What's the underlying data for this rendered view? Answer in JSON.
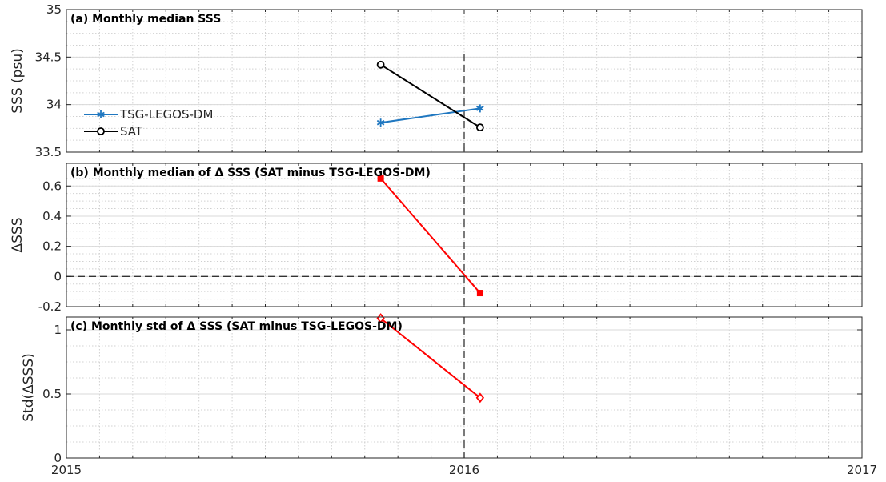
{
  "chart_data": [
    {
      "id": "a",
      "type": "line",
      "title": "(a) Monthly median SSS",
      "ylabel": "SSS (psu)",
      "xlabel": "",
      "xlim": [
        2015,
        2017
      ],
      "ylim": [
        33.5,
        35
      ],
      "yticks": [
        33.5,
        34,
        34.5,
        35
      ],
      "yticklabels": [
        "33.5",
        "34",
        "34.5",
        "35"
      ],
      "grid": true,
      "legend": "left",
      "series": [
        {
          "name": "TSG-LEGOS-DM",
          "color": "#1f77c0",
          "marker": "asterisk",
          "x": [
            2015.79,
            2016.04
          ],
          "y": [
            33.81,
            33.96
          ]
        },
        {
          "name": "SAT",
          "color": "#000000",
          "marker": "circle",
          "x": [
            2015.79,
            2016.04
          ],
          "y": [
            34.42,
            33.76
          ]
        }
      ]
    },
    {
      "id": "b",
      "type": "line",
      "title": "(b) Monthly median of Δ SSS (SAT minus TSG-LEGOS-DM)",
      "ylabel": "ΔSSS",
      "xlabel": "",
      "xlim": [
        2015,
        2017
      ],
      "ylim": [
        -0.2,
        0.75
      ],
      "yticks": [
        -0.2,
        0,
        0.2,
        0.4,
        0.6
      ],
      "yticklabels": [
        "-0.2",
        "0",
        "0.2",
        "0.4",
        "0.6"
      ],
      "grid": true,
      "reference_line_y": 0,
      "series": [
        {
          "color": "#ff0000",
          "marker": "square",
          "x": [
            2015.79,
            2016.04
          ],
          "y": [
            0.65,
            -0.11
          ]
        }
      ]
    },
    {
      "id": "c",
      "type": "line",
      "title": "(c) Monthly std of Δ SSS (SAT minus TSG-LEGOS-DM)",
      "ylabel": "Std(ΔSSS)",
      "xlabel": "",
      "xlim": [
        2015,
        2017
      ],
      "ylim": [
        0,
        1.1
      ],
      "yticks": [
        0,
        0.5,
        1
      ],
      "yticklabels": [
        "0",
        "0.5",
        "1"
      ],
      "xticks": [
        2015,
        2016,
        2017
      ],
      "xticklabels": [
        "2015",
        "2016",
        "2017"
      ],
      "grid": true,
      "series": [
        {
          "color": "#ff0000",
          "marker": "diamond",
          "x": [
            2015.79,
            2016.04
          ],
          "y": [
            1.09,
            0.47
          ]
        }
      ]
    }
  ],
  "reference_line_x": 2016,
  "colors": {
    "tsg": "#1f77c0",
    "sat": "#000000",
    "delta": "#ff0000"
  }
}
